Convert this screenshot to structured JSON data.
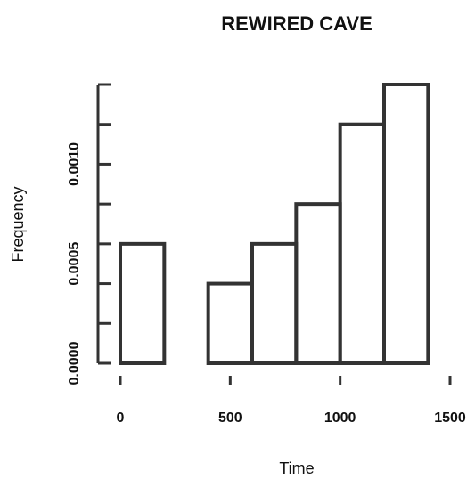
{
  "chart_data": {
    "type": "bar",
    "title": "REWIRED CAVE",
    "xlabel": "Time",
    "ylabel": "Frequency",
    "x_ticks": [
      "0",
      "500",
      "1000",
      "1500"
    ],
    "y_ticks": [
      "0.0000",
      "0.0005",
      "0.0010"
    ],
    "bins": [
      {
        "start": 0,
        "end": 200,
        "value": 0.0006
      },
      {
        "start": 200,
        "end": 400,
        "value": 0.0
      },
      {
        "start": 400,
        "end": 600,
        "value": 0.0004
      },
      {
        "start": 600,
        "end": 800,
        "value": 0.0006
      },
      {
        "start": 800,
        "end": 1000,
        "value": 0.0008
      },
      {
        "start": 1000,
        "end": 1200,
        "value": 0.0012
      },
      {
        "start": 1200,
        "end": 1400,
        "value": 0.0014
      }
    ],
    "xlim": [
      0,
      1500
    ],
    "ylim": [
      0,
      0.0014
    ],
    "colors": {
      "bar_stroke": "#333333"
    }
  }
}
